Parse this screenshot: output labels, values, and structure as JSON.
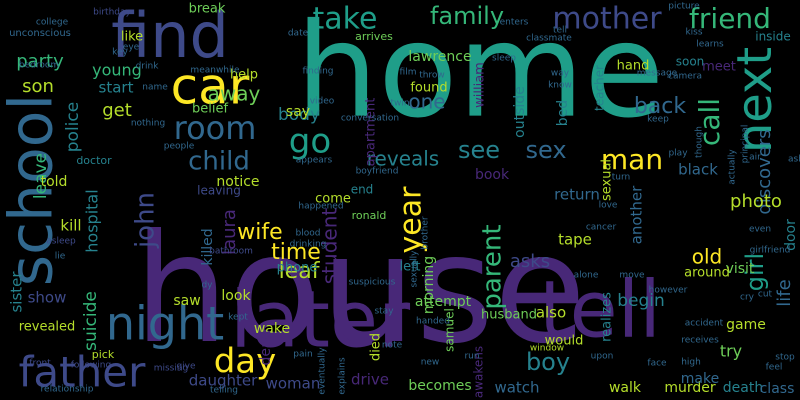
{
  "background": "#000000",
  "palette": [
    "#440154",
    "#482878",
    "#3e4a89",
    "#31688e",
    "#26828e",
    "#1f9e89",
    "#35b779",
    "#6ece58",
    "#b5de2b",
    "#fde725"
  ],
  "words": [
    {
      "text": "house",
      "color": "#482878"
    },
    {
      "text": "home",
      "color": "#1f9e89"
    },
    {
      "text": "school",
      "color": "#31688e"
    },
    {
      "text": "later",
      "color": "#482878"
    },
    {
      "text": "tell",
      "color": "#482878"
    },
    {
      "text": "find",
      "color": "#3e4a89"
    },
    {
      "text": "night",
      "color": "#31688e"
    },
    {
      "text": "car",
      "color": "#fde725"
    },
    {
      "text": "next",
      "color": "#1f9e89"
    },
    {
      "text": "father",
      "color": "#3e4a89"
    },
    {
      "text": "day",
      "color": "#fde725"
    },
    {
      "text": "room",
      "color": "#31688e"
    },
    {
      "text": "mother",
      "color": "#3e4a89"
    },
    {
      "text": "friend",
      "color": "#35b779"
    },
    {
      "text": "take",
      "color": "#1f9e89"
    },
    {
      "text": "family",
      "color": "#35b779"
    },
    {
      "text": "go",
      "color": "#1f9e89"
    },
    {
      "text": "child",
      "color": "#31688e"
    },
    {
      "text": "john",
      "color": "#3e4a89"
    },
    {
      "text": "year",
      "color": "#fde725"
    },
    {
      "text": "see",
      "color": "#26828e"
    },
    {
      "text": "sex",
      "color": "#31688e"
    },
    {
      "text": "man",
      "color": "#fde725"
    },
    {
      "text": "call",
      "color": "#35b779"
    },
    {
      "text": "girl",
      "color": "#1f9e89"
    },
    {
      "text": "boy",
      "color": "#26828e"
    },
    {
      "text": "parent",
      "color": "#35b779"
    },
    {
      "text": "life",
      "color": "#31688e"
    },
    {
      "text": "wife",
      "color": "#fde725"
    },
    {
      "text": "time",
      "color": "#fde725"
    },
    {
      "text": "laura",
      "color": "#482878"
    },
    {
      "text": "away",
      "color": "#6ece58"
    },
    {
      "text": "one",
      "color": "#31688e"
    },
    {
      "text": "back",
      "color": "#31688e"
    },
    {
      "text": "discovers",
      "color": "#31688e"
    },
    {
      "text": "student",
      "color": "#482878"
    },
    {
      "text": "reveals",
      "color": "#26828e"
    },
    {
      "text": "leaf",
      "color": "#b5de2b"
    },
    {
      "text": "old",
      "color": "#fde725"
    },
    {
      "text": "asks",
      "color": "#3e4a89"
    },
    {
      "text": "hospital",
      "color": "#26828e"
    },
    {
      "text": "party",
      "color": "#35b779"
    },
    {
      "text": "son",
      "color": "#b5de2b"
    },
    {
      "text": "police",
      "color": "#26828e"
    },
    {
      "text": "leave",
      "color": "#35b779"
    },
    {
      "text": "sister",
      "color": "#26828e"
    },
    {
      "text": "suicide",
      "color": "#35b779"
    },
    {
      "text": "show",
      "color": "#3e4a89"
    },
    {
      "text": "young",
      "color": "#35b779"
    },
    {
      "text": "start",
      "color": "#26828e"
    },
    {
      "text": "get",
      "color": "#b5de2b"
    },
    {
      "text": "body",
      "color": "#26828e"
    },
    {
      "text": "photo",
      "color": "#b5de2b"
    },
    {
      "text": "begin",
      "color": "#26828e"
    },
    {
      "text": "woman",
      "color": "#3e4a89"
    },
    {
      "text": "drive",
      "color": "#482878"
    },
    {
      "text": "becomes",
      "color": "#6ece58"
    },
    {
      "text": "watch",
      "color": "#31688e"
    },
    {
      "text": "walk",
      "color": "#b5de2b"
    },
    {
      "text": "murder",
      "color": "#b5de2b"
    },
    {
      "text": "death",
      "color": "#26828e"
    },
    {
      "text": "class",
      "color": "#31688e"
    },
    {
      "text": "daughter",
      "color": "#3e4a89"
    },
    {
      "text": "look",
      "color": "#b5de2b"
    },
    {
      "text": "saw",
      "color": "#b5de2b"
    },
    {
      "text": "attempt",
      "color": "#6ece58"
    },
    {
      "text": "also",
      "color": "#b5de2b"
    },
    {
      "text": "try",
      "color": "#6ece58"
    },
    {
      "text": "make",
      "color": "#31688e"
    },
    {
      "text": "visit",
      "color": "#6ece58"
    },
    {
      "text": "tape",
      "color": "#b5de2b"
    },
    {
      "text": "another",
      "color": "#31688e"
    },
    {
      "text": "black",
      "color": "#31688e"
    },
    {
      "text": "return",
      "color": "#31688e"
    },
    {
      "text": "book",
      "color": "#482878"
    },
    {
      "text": "found",
      "color": "#b5de2b"
    },
    {
      "text": "lawrence",
      "color": "#6ece58"
    },
    {
      "text": "hand",
      "color": "#b5de2b"
    },
    {
      "text": "meet",
      "color": "#482878"
    },
    {
      "text": "like",
      "color": "#b5de2b"
    },
    {
      "text": "help",
      "color": "#b5de2b"
    },
    {
      "text": "belief",
      "color": "#6ece58"
    },
    {
      "text": "notice",
      "color": "#b5de2b"
    },
    {
      "text": "leaving",
      "color": "#3e4a89"
    },
    {
      "text": "killed",
      "color": "#31688e"
    },
    {
      "text": "say",
      "color": "#b5de2b"
    },
    {
      "text": "end",
      "color": "#26828e"
    },
    {
      "text": "come",
      "color": "#b5de2b"
    },
    {
      "text": "morning",
      "color": "#6ece58"
    },
    {
      "text": "apartment",
      "color": "#482878"
    },
    {
      "text": "outside",
      "color": "#26828e"
    },
    {
      "text": "william",
      "color": "#482878"
    },
    {
      "text": "bed",
      "color": "#26828e"
    },
    {
      "text": "teacher",
      "color": "#26828e"
    },
    {
      "text": "sexual",
      "color": "#b5de2b"
    },
    {
      "text": "wake",
      "color": "#b5de2b"
    },
    {
      "text": "dead",
      "color": "#482878"
    },
    {
      "text": "died",
      "color": "#b5de2b"
    },
    {
      "text": "husband",
      "color": "#6ece58"
    },
    {
      "text": "would",
      "color": "#b5de2b"
    },
    {
      "text": "awakens",
      "color": "#482878"
    },
    {
      "text": "realizes",
      "color": "#26828e"
    },
    {
      "text": "around",
      "color": "#b5de2b"
    },
    {
      "text": "game",
      "color": "#b5de2b"
    },
    {
      "text": "door",
      "color": "#26828e"
    },
    {
      "text": "kill",
      "color": "#b5de2b"
    },
    {
      "text": "told",
      "color": "#b5de2b"
    },
    {
      "text": "left",
      "color": "#26828e"
    },
    {
      "text": "samuel",
      "color": "#6ece58"
    },
    {
      "text": "phone",
      "color": "#26828e"
    },
    {
      "text": "break",
      "color": "#6ece58"
    },
    {
      "text": "inside",
      "color": "#26828e"
    },
    {
      "text": "soon",
      "color": "#26828e"
    },
    {
      "text": "arrives",
      "color": "#6ece58"
    },
    {
      "text": "revealed",
      "color": "#b5de2b"
    },
    {
      "text": "doctor",
      "color": "#26828e"
    },
    {
      "text": "unconscious",
      "color": "#31688e"
    },
    {
      "text": "college",
      "color": "#31688e"
    },
    {
      "text": "bedroom",
      "color": "#31688e"
    },
    {
      "text": "birthday",
      "color": "#3e4a89"
    },
    {
      "text": "classmate",
      "color": "#31688e"
    },
    {
      "text": "girlfriend",
      "color": "#31688e"
    },
    {
      "text": "boyfriend",
      "color": "#31688e"
    },
    {
      "text": "twin",
      "color": "#31688e"
    },
    {
      "text": "video",
      "color": "#31688e"
    },
    {
      "text": "conversation",
      "color": "#31688e"
    },
    {
      "text": "happened",
      "color": "#31688e"
    },
    {
      "text": "ronald",
      "color": "#6ece58"
    },
    {
      "text": "blood",
      "color": "#31688e"
    },
    {
      "text": "drinking",
      "color": "#31688e"
    },
    {
      "text": "bathroom",
      "color": "#3e4a89"
    },
    {
      "text": "asleep",
      "color": "#3e4a89"
    },
    {
      "text": "pick",
      "color": "#b5de2b"
    },
    {
      "text": "give",
      "color": "#3e4a89"
    },
    {
      "text": "missing",
      "color": "#3e4a89"
    },
    {
      "text": "telling",
      "color": "#31688e"
    },
    {
      "text": "relationship",
      "color": "#31688e"
    },
    {
      "text": "front",
      "color": "#3e4a89"
    },
    {
      "text": "following",
      "color": "#3e4a89"
    },
    {
      "text": "pain",
      "color": "#31688e"
    },
    {
      "text": "eventually",
      "color": "#31688e"
    },
    {
      "text": "note",
      "color": "#31688e"
    },
    {
      "text": "new",
      "color": "#31688e"
    },
    {
      "text": "run",
      "color": "#31688e"
    },
    {
      "text": "window",
      "color": "#b5de2b"
    },
    {
      "text": "upon",
      "color": "#31688e"
    },
    {
      "text": "high",
      "color": "#31688e"
    },
    {
      "text": "receives",
      "color": "#31688e"
    },
    {
      "text": "stop",
      "color": "#31688e"
    },
    {
      "text": "feel",
      "color": "#31688e"
    },
    {
      "text": "cut",
      "color": "#31688e"
    },
    {
      "text": "accident",
      "color": "#31688e"
    },
    {
      "text": "face",
      "color": "#31688e"
    },
    {
      "text": "however",
      "color": "#31688e"
    },
    {
      "text": "move",
      "color": "#31688e"
    },
    {
      "text": "alone",
      "color": "#31688e"
    },
    {
      "text": "cancer",
      "color": "#31688e"
    },
    {
      "text": "cry",
      "color": "#31688e"
    },
    {
      "text": "play",
      "color": "#31688e"
    },
    {
      "text": "love",
      "color": "#31688e"
    },
    {
      "text": "turn",
      "color": "#31688e"
    },
    {
      "text": "picture",
      "color": "#31688e"
    },
    {
      "text": "kiss",
      "color": "#31688e"
    },
    {
      "text": "learns",
      "color": "#31688e"
    },
    {
      "text": "camera",
      "color": "#31688e"
    },
    {
      "text": "principal",
      "color": "#31688e"
    },
    {
      "text": "actually",
      "color": "#31688e"
    },
    {
      "text": "message",
      "color": "#31688e"
    },
    {
      "text": "keep",
      "color": "#31688e"
    },
    {
      "text": "know",
      "color": "#31688e"
    },
    {
      "text": "way",
      "color": "#31688e"
    },
    {
      "text": "sleep",
      "color": "#31688e"
    },
    {
      "text": "finding",
      "color": "#31688e"
    },
    {
      "text": "throw",
      "color": "#31688e"
    },
    {
      "text": "film",
      "color": "#31688e"
    },
    {
      "text": "name",
      "color": "#31688e"
    },
    {
      "text": "drink",
      "color": "#31688e"
    },
    {
      "text": "meanwhile",
      "color": "#31688e"
    },
    {
      "text": "nothing",
      "color": "#31688e"
    },
    {
      "text": "key",
      "color": "#31688e"
    },
    {
      "text": "eye",
      "color": "#31688e"
    },
    {
      "text": "enters",
      "color": "#31688e"
    },
    {
      "text": "date",
      "color": "#31688e"
    },
    {
      "text": "appears",
      "color": "#31688e"
    },
    {
      "text": "people",
      "color": "#31688e"
    },
    {
      "text": "suspicious",
      "color": "#31688e"
    },
    {
      "text": "brother",
      "color": "#31688e"
    },
    {
      "text": "stay",
      "color": "#31688e"
    },
    {
      "text": "lie",
      "color": "#31688e"
    },
    {
      "text": "dy",
      "color": "#31688e"
    },
    {
      "text": "kept",
      "color": "#31688e"
    },
    {
      "text": "explains",
      "color": "#31688e"
    },
    {
      "text": "sexually",
      "color": "#31688e"
    },
    {
      "text": "handed",
      "color": "#31688e"
    },
    {
      "text": "air",
      "color": "#31688e"
    },
    {
      "text": "ash",
      "color": "#31688e"
    },
    {
      "text": "even",
      "color": "#31688e"
    },
    {
      "text": "tell",
      "color": "#31688e"
    },
    {
      "text": "though",
      "color": "#31688e"
    }
  ]
}
